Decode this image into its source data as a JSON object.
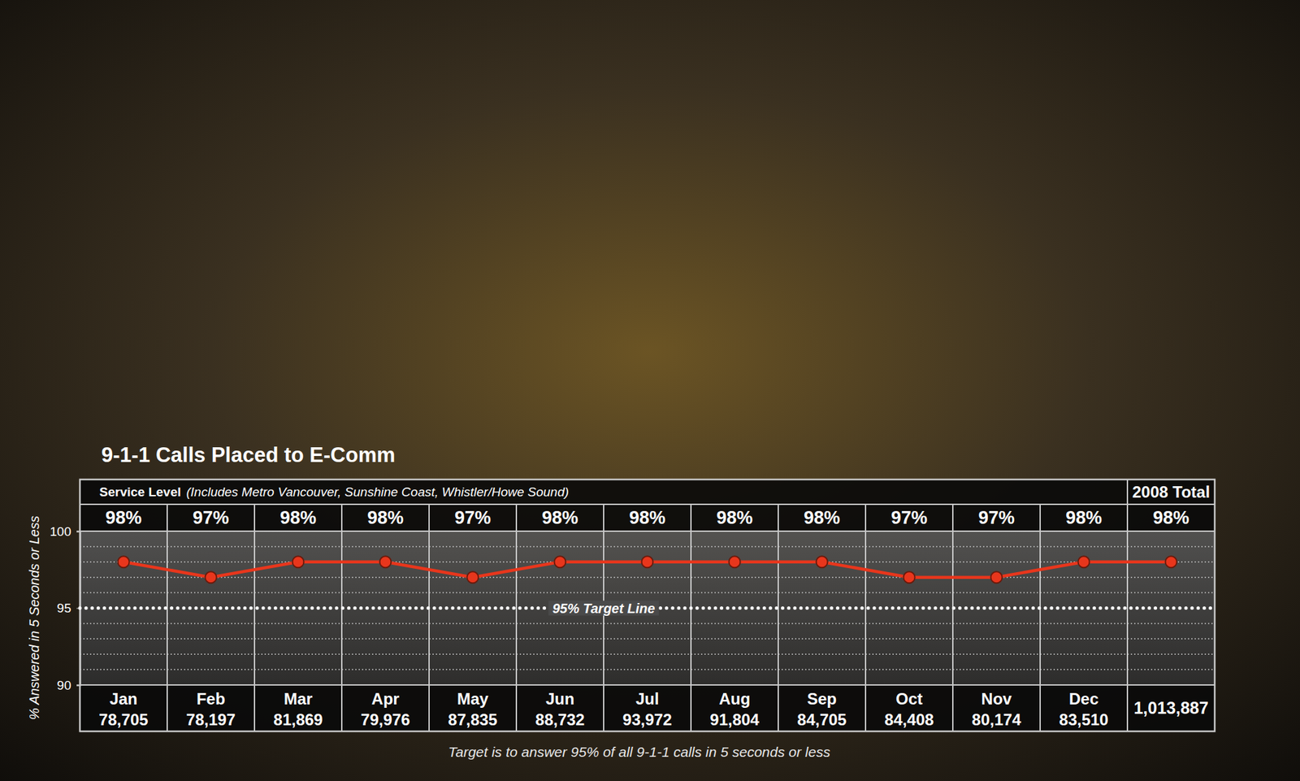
{
  "chart_data": {
    "type": "line",
    "title": "9-1-1 Calls Placed to E-Comm",
    "categories": [
      "Jan",
      "Feb",
      "Mar",
      "Apr",
      "May",
      "Jun",
      "Jul",
      "Aug",
      "Sep",
      "Oct",
      "Nov",
      "Dec",
      null
    ],
    "total_label": "2008 Total",
    "series": [
      {
        "name": "Service Level",
        "color": "#e8361c",
        "marker": "circle",
        "values": [
          98,
          97,
          98,
          98,
          97,
          98,
          98,
          98,
          98,
          97,
          97,
          98,
          98
        ],
        "value_labels": [
          "98%",
          "97%",
          "98%",
          "98%",
          "97%",
          "98%",
          "98%",
          "98%",
          "98%",
          "97%",
          "97%",
          "98%",
          "98%"
        ]
      }
    ],
    "series_note": "(Includes Metro Vancouver, Sunshine Coast, Whistler/Howe Sound)",
    "calls": [
      78705,
      78197,
      81869,
      79976,
      87835,
      88732,
      93972,
      91804,
      84705,
      84408,
      80174,
      83510,
      1013887
    ],
    "calls_labels": [
      "78,705",
      "78,197",
      "81,869",
      "79,976",
      "87,835",
      "88,732",
      "93,972",
      "91,804",
      "84,705",
      "84,408",
      "80,174",
      "83,510",
      "1,013,887"
    ],
    "ylabel": "% Answered in 5 Seconds or Less",
    "ylim": [
      90,
      100
    ],
    "yticks": [
      90,
      95,
      100
    ],
    "grid_lines": [
      91,
      92,
      93,
      94,
      96,
      97,
      98,
      99
    ],
    "target": 95,
    "target_label": "95% Target Line",
    "footnote": "Target is to answer 95% of all 9-1-1 calls in 5 seconds or less",
    "data_labels": true,
    "grid": true
  }
}
